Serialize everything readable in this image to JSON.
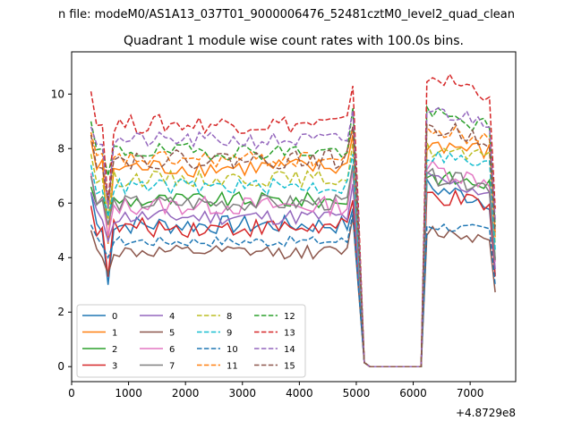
{
  "suptitle": "n file: modeM0/AS1A13_037T01_9000006476_52481cztM0_level2_quad_clean",
  "chart_data": {
    "type": "line",
    "title": "Quadrant 1 module wise count rates with 100.0s bins.",
    "xlabel": "",
    "ylabel": "",
    "x_offset_label": "+4.8729e8",
    "xlim": [
      0,
      7800
    ],
    "ylim": [
      -0.55,
      11.55
    ],
    "xticks": [
      0,
      1000,
      2000,
      3000,
      4000,
      5000,
      6000,
      7000
    ],
    "yticks": [
      0,
      2,
      4,
      6,
      8,
      10
    ],
    "grid": false,
    "legend_placement": "lower-left",
    "legend_columns": 4,
    "x": [
      340,
      440,
      540,
      640,
      740,
      840,
      940,
      1040,
      1140,
      1240,
      1340,
      1440,
      1540,
      1640,
      1740,
      1840,
      1940,
      2040,
      2140,
      2240,
      2340,
      2440,
      2540,
      2640,
      2740,
      2840,
      2940,
      3040,
      3140,
      3240,
      3340,
      3440,
      3540,
      3640,
      3740,
      3840,
      3940,
      4040,
      4140,
      4240,
      4340,
      4440,
      4540,
      4640,
      4740,
      4840,
      4940,
      5040,
      5140,
      5240,
      5340,
      5440,
      5540,
      5640,
      5740,
      5840,
      5940,
      6040,
      6140,
      6240,
      6340,
      6440,
      6540,
      6640,
      6740,
      6840,
      6940,
      7040,
      7140,
      7240,
      7340,
      7440
    ],
    "series": [
      {
        "name": "0",
        "color": "#1f77b4",
        "dash": "solid",
        "base": 5.2,
        "amp": 0.35,
        "dip": 3.0,
        "start": 6.4,
        "end": 4.8,
        "post": 6.6
      },
      {
        "name": "1",
        "color": "#ff7f0e",
        "dash": "solid",
        "base": 7.3,
        "amp": 0.35,
        "dip": 4.5,
        "start": 8.3,
        "end": 7.5,
        "post": 8.2
      },
      {
        "name": "2",
        "color": "#2ca02c",
        "dash": "solid",
        "base": 6.1,
        "amp": 0.3,
        "dip": 5.6,
        "start": 6.6,
        "end": 6.3,
        "post": 7.0
      },
      {
        "name": "3",
        "color": "#d62728",
        "dash": "solid",
        "base": 5.1,
        "amp": 0.35,
        "dip": 3.3,
        "start": 5.9,
        "end": 5.1,
        "post": 6.3
      },
      {
        "name": "4",
        "color": "#9467bd",
        "dash": "solid",
        "base": 5.5,
        "amp": 0.3,
        "dip": 4.6,
        "start": 6.4,
        "end": 5.7,
        "post": 6.9
      },
      {
        "name": "5",
        "color": "#8c564b",
        "dash": "solid",
        "base": 4.2,
        "amp": 0.25,
        "dip": 3.4,
        "start": 5.0,
        "end": 4.5,
        "post": 5.0
      },
      {
        "name": "6",
        "color": "#e377c2",
        "dash": "solid",
        "base": 5.9,
        "amp": 0.35,
        "dip": 4.8,
        "start": 7.1,
        "end": 6.2,
        "post": 7.3
      },
      {
        "name": "7",
        "color": "#7f7f7f",
        "dash": "solid",
        "base": 6.0,
        "amp": 0.3,
        "dip": 5.2,
        "start": 7.0,
        "end": 6.4,
        "post": 7.0
      },
      {
        "name": "8",
        "color": "#bcbd22",
        "dash": "dashed",
        "base": 6.9,
        "amp": 0.3,
        "dip": 5.4,
        "start": 7.8,
        "end": 7.2,
        "post": 8.0
      },
      {
        "name": "9",
        "color": "#17becf",
        "dash": "dashed",
        "base": 6.6,
        "amp": 0.3,
        "dip": 5.5,
        "start": 7.4,
        "end": 6.8,
        "post": 7.8
      },
      {
        "name": "10",
        "color": "#1f77b4",
        "dash": "dashed",
        "base": 4.6,
        "amp": 0.2,
        "dip": 4.0,
        "start": 5.2,
        "end": 4.6,
        "post": 5.2
      },
      {
        "name": "11",
        "color": "#ff7f0e",
        "dash": "dashed",
        "base": 7.6,
        "amp": 0.3,
        "dip": 5.8,
        "start": 8.6,
        "end": 7.8,
        "post": 8.7
      },
      {
        "name": "12",
        "color": "#2ca02c",
        "dash": "dashed",
        "base": 7.9,
        "amp": 0.3,
        "dip": 7.0,
        "start": 9.0,
        "end": 8.5,
        "post": 9.3
      },
      {
        "name": "13",
        "color": "#d62728",
        "dash": "dashed",
        "base": 8.9,
        "amp": 0.35,
        "dip": 6.0,
        "start": 10.1,
        "end": 9.3,
        "post": 10.7
      },
      {
        "name": "14",
        "color": "#9467bd",
        "dash": "dashed",
        "base": 8.3,
        "amp": 0.3,
        "dip": 5.8,
        "start": 8.8,
        "end": 8.4,
        "post": 9.4
      },
      {
        "name": "15",
        "color": "#8c564b",
        "dash": "dashed",
        "base": 7.6,
        "amp": 0.35,
        "dip": 6.1,
        "start": 8.5,
        "end": 7.8,
        "post": 8.8
      }
    ]
  }
}
